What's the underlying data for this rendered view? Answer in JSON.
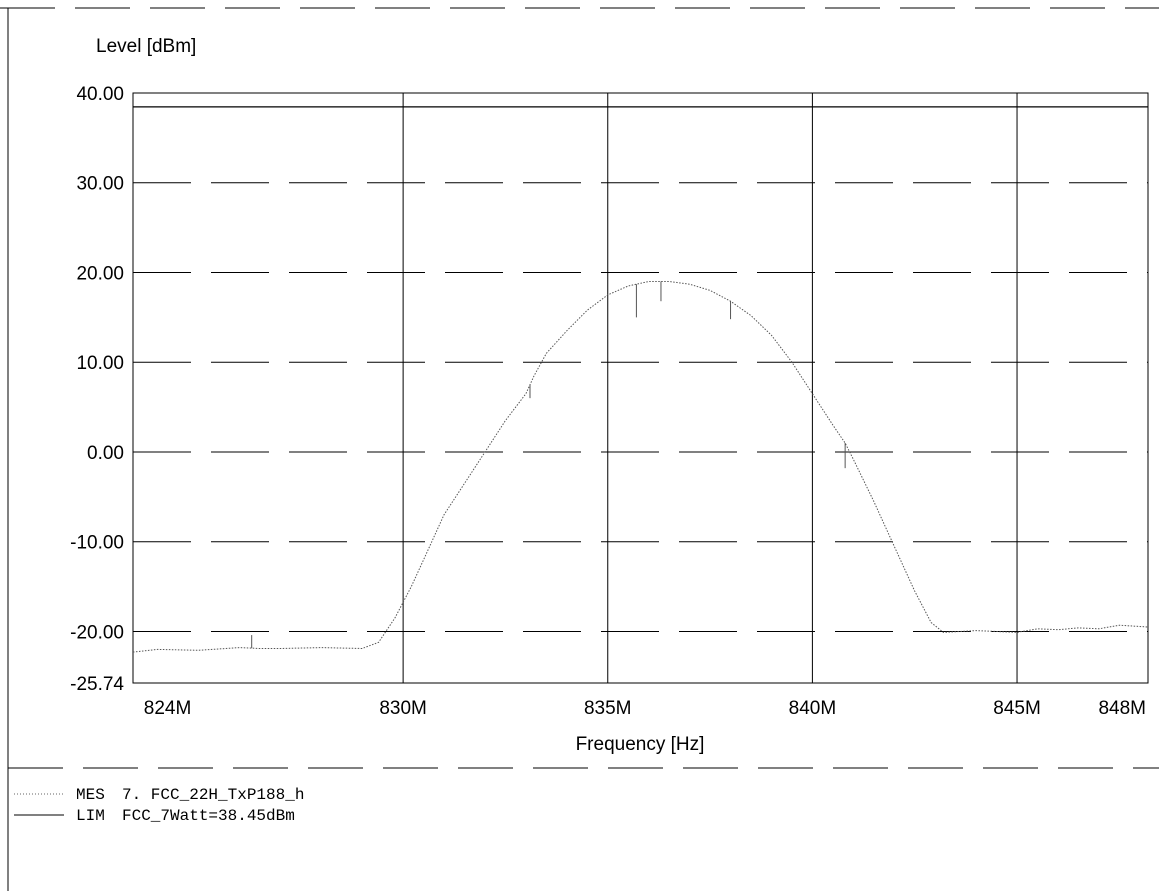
{
  "chart_data": {
    "type": "line",
    "ylabel": "Level [dBm]",
    "xlabel": "Frequency [Hz]",
    "xlim": [
      823.4,
      848.2
    ],
    "ylim": [
      -25.74,
      40.0
    ],
    "grid": true,
    "y_ticks": [
      {
        "value": 40.0,
        "label": "40.00"
      },
      {
        "value": 30.0,
        "label": "30.00"
      },
      {
        "value": 20.0,
        "label": "20.00"
      },
      {
        "value": 10.0,
        "label": "10.00"
      },
      {
        "value": 0.0,
        "label": "0.00"
      },
      {
        "value": -10.0,
        "label": "-10.00"
      },
      {
        "value": -20.0,
        "label": "-20.00"
      },
      {
        "value": -25.74,
        "label": "-25.74"
      }
    ],
    "x_ticks": [
      {
        "value": 824,
        "label": "824M"
      },
      {
        "value": 830,
        "label": "830M"
      },
      {
        "value": 835,
        "label": "835M"
      },
      {
        "value": 840,
        "label": "840M"
      },
      {
        "value": 845,
        "label": "845M"
      },
      {
        "value": 848,
        "label": "848M"
      }
    ],
    "x_grid": [
      830,
      835,
      840,
      845
    ],
    "series": [
      {
        "name": "MES",
        "style": "dotted",
        "x": [
          823.4,
          824.0,
          825.0,
          826.0,
          826.5,
          827.0,
          828.0,
          829.0,
          829.4,
          829.8,
          830.2,
          830.6,
          831.0,
          831.5,
          832.0,
          832.5,
          833.0,
          833.2,
          833.5,
          834.0,
          834.5,
          835.0,
          835.5,
          835.7,
          836.0,
          836.3,
          836.5,
          837.0,
          837.5,
          838.0,
          838.5,
          839.0,
          839.5,
          840.0,
          840.5,
          840.8,
          841.0,
          841.5,
          842.0,
          842.5,
          842.9,
          843.2,
          843.6,
          844.0,
          844.5,
          845.0,
          845.5,
          846.0,
          846.5,
          847.0,
          847.5,
          848.2
        ],
        "y": [
          -22.3,
          -22.0,
          -22.1,
          -21.8,
          -21.9,
          -21.9,
          -21.8,
          -21.9,
          -21.2,
          -18.5,
          -15.0,
          -11.0,
          -7.0,
          -3.5,
          0.0,
          3.5,
          6.5,
          8.5,
          11.0,
          13.5,
          15.8,
          17.5,
          18.5,
          18.7,
          19.0,
          19.0,
          19.0,
          18.7,
          18.0,
          16.8,
          15.2,
          13.0,
          10.0,
          6.5,
          3.0,
          1.0,
          -0.8,
          -5.5,
          -10.5,
          -15.5,
          -19.0,
          -20.1,
          -20.0,
          -19.9,
          -20.0,
          -20.1,
          -19.7,
          -19.8,
          -19.6,
          -19.7,
          -19.3,
          -19.5
        ]
      },
      {
        "name": "LIM",
        "style": "solid",
        "x": [
          823.4,
          848.2
        ],
        "y": [
          38.45,
          38.45
        ]
      }
    ],
    "legend": [
      {
        "code": "MES",
        "text": "7. FCC_22H_TxP188_h",
        "style": "dotted"
      },
      {
        "code": "LIM",
        "text": "FCC_7Watt=38.45dBm",
        "style": "solid"
      }
    ],
    "spikes": [
      {
        "x": 826.3,
        "y": -20.4
      },
      {
        "x": 833.1,
        "y": 6.0
      },
      {
        "x": 835.7,
        "y": 15.0
      },
      {
        "x": 836.3,
        "y": 16.8
      },
      {
        "x": 838.0,
        "y": 14.8
      },
      {
        "x": 840.8,
        "y": -1.8
      }
    ]
  }
}
